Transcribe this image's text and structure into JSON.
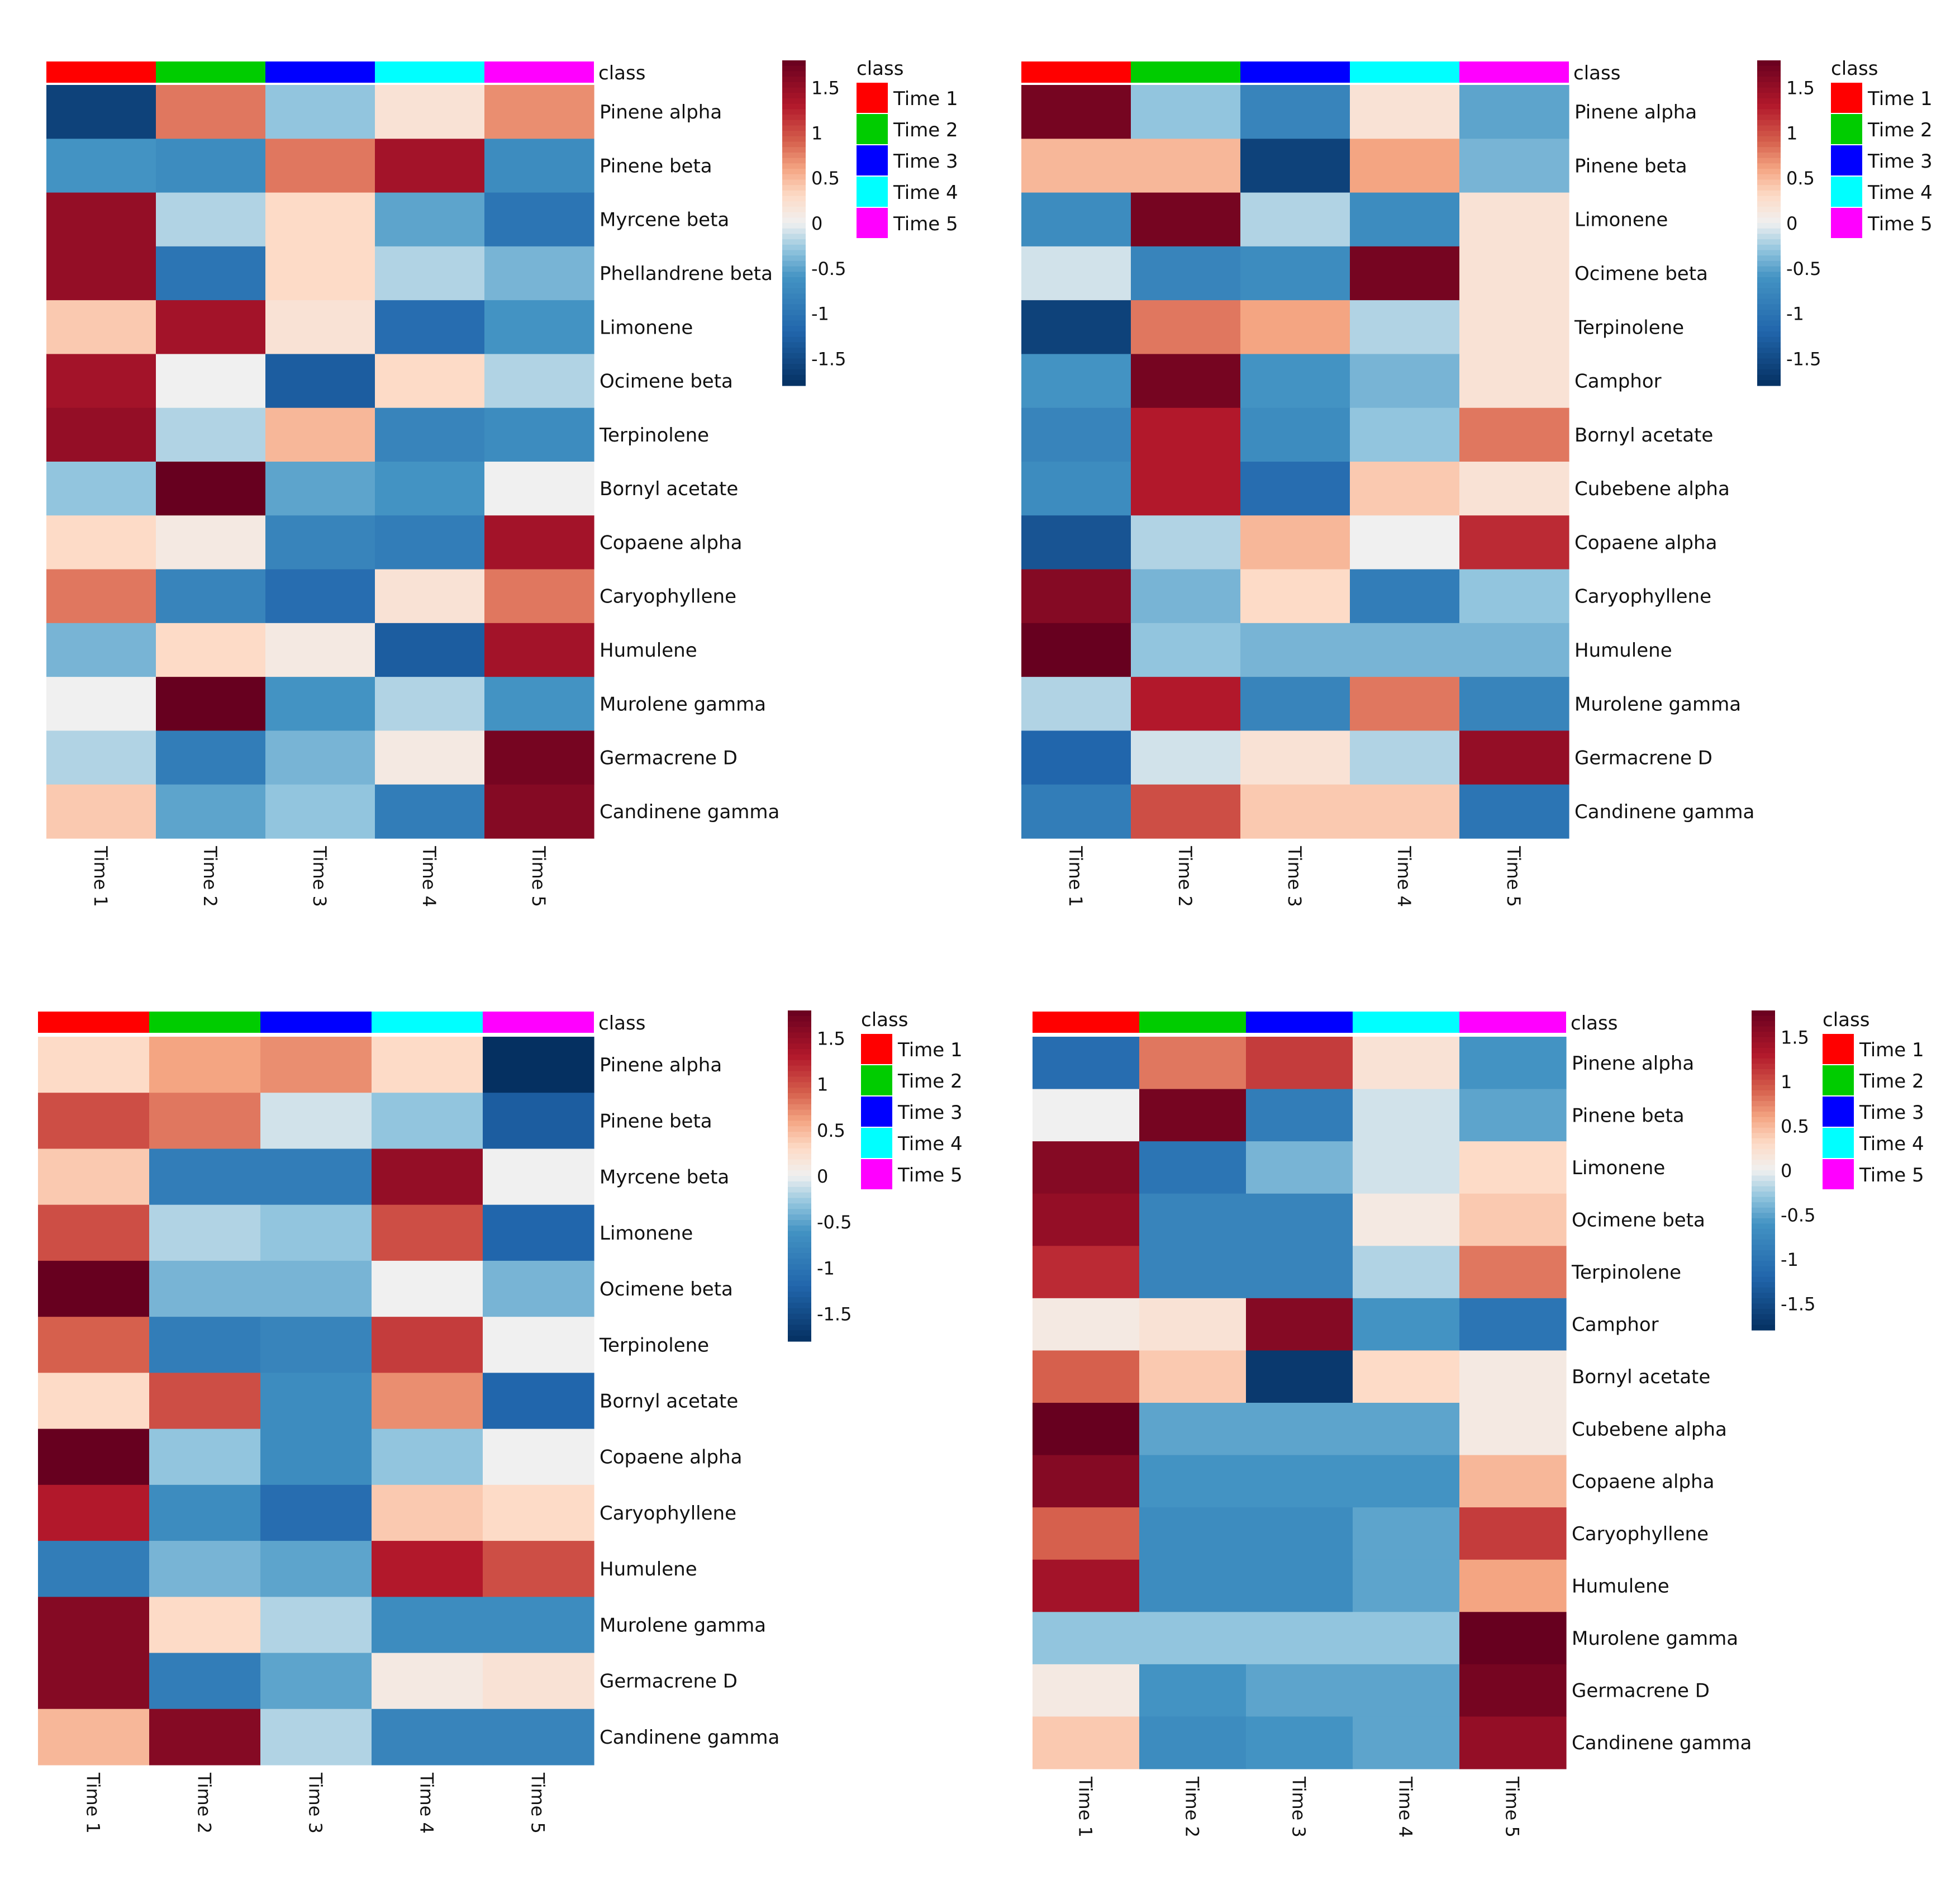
{
  "colors": {
    "class": [
      "#ff0000",
      "#00cc00",
      "#0000ff",
      "#00ffff",
      "#ff00ff"
    ],
    "scale_low": "#053061",
    "scale_mid": "#f5f5f5",
    "scale_high": "#67001f"
  },
  "chart_data": [
    {
      "type": "heatmap",
      "annotation_title": "class",
      "legend_title": "class",
      "legend_labels": [
        "Time 1",
        "Time 2",
        "Time 3",
        "Time 4",
        "Time 5"
      ],
      "columns": [
        "Time 1",
        "Time 2",
        "Time 3",
        "Time 4",
        "Time 5"
      ],
      "scale_ticks": [
        "1.5",
        "1",
        "0.5",
        "0",
        "-0.5",
        "-1",
        "-1.5"
      ],
      "scale_range": [
        -1.8,
        1.8
      ],
      "rows": [
        "Pinene alpha",
        "Pinene beta",
        "Myrcene beta",
        "Phellandrene beta",
        "Limonene",
        "Ocimene beta",
        "Terpinolene",
        "Bornyl acetate",
        "Copaene alpha",
        "Caryophyllene",
        "Humulene",
        "Murolene gamma",
        "Germacrene D",
        "Candinene gamma"
      ],
      "values": [
        [
          -1.6,
          0.8,
          -0.3,
          0.2,
          0.7
        ],
        [
          -0.6,
          -0.7,
          0.8,
          1.4,
          -0.7
        ],
        [
          1.5,
          -0.2,
          0.3,
          -0.5,
          -1.0
        ],
        [
          1.5,
          -1.0,
          0.3,
          -0.2,
          -0.4
        ],
        [
          0.4,
          1.4,
          0.2,
          -1.1,
          -0.6
        ],
        [
          1.4,
          0.0,
          -1.3,
          0.3,
          -0.2
        ],
        [
          1.5,
          -0.2,
          0.5,
          -0.8,
          -0.7
        ],
        [
          -0.3,
          1.8,
          -0.5,
          -0.6,
          0.0
        ],
        [
          0.3,
          0.1,
          -0.8,
          -0.9,
          1.4
        ],
        [
          0.8,
          -0.8,
          -1.1,
          0.2,
          0.8
        ],
        [
          -0.4,
          0.3,
          0.1,
          -1.3,
          1.4
        ],
        [
          0.0,
          1.8,
          -0.6,
          -0.2,
          -0.6
        ],
        [
          -0.2,
          -0.9,
          -0.4,
          0.1,
          1.7
        ],
        [
          0.4,
          -0.5,
          -0.3,
          -0.9,
          1.6
        ]
      ]
    },
    {
      "type": "heatmap",
      "annotation_title": "class",
      "legend_title": "class",
      "legend_labels": [
        "Time 1",
        "Time 2",
        "Time 3",
        "Time 4",
        "Time 5"
      ],
      "columns": [
        "Time 1",
        "Time 2",
        "Time 3",
        "Time 4",
        "Time 5"
      ],
      "scale_ticks": [
        "1.5",
        "1",
        "0.5",
        "0",
        "-0.5",
        "-1",
        "-1.5"
      ],
      "scale_range": [
        -1.8,
        1.8
      ],
      "rows": [
        "Pinene alpha",
        "Pinene beta",
        "Limonene",
        "Ocimene beta",
        "Terpinolene",
        "Camphor",
        "Bornyl acetate",
        "Cubebene alpha",
        "Copaene alpha",
        "Caryophyllene",
        "Humulene",
        "Murolene gamma",
        "Germacrene D",
        "Candinene gamma"
      ],
      "values": [
        [
          1.7,
          -0.3,
          -0.8,
          0.2,
          -0.5
        ],
        [
          0.5,
          0.5,
          -1.6,
          0.6,
          -0.4
        ],
        [
          -0.7,
          1.7,
          -0.2,
          -0.7,
          0.2
        ],
        [
          -0.1,
          -0.8,
          -0.7,
          1.7,
          0.2
        ],
        [
          -1.6,
          0.8,
          0.6,
          -0.2,
          0.2
        ],
        [
          -0.6,
          1.7,
          -0.6,
          -0.4,
          0.2
        ],
        [
          -0.8,
          1.3,
          -0.7,
          -0.3,
          0.8
        ],
        [
          -0.7,
          1.3,
          -1.1,
          0.4,
          0.2
        ],
        [
          -1.4,
          -0.2,
          0.5,
          0.0,
          1.2
        ],
        [
          1.6,
          -0.4,
          0.3,
          -0.9,
          -0.3
        ],
        [
          1.8,
          -0.3,
          -0.4,
          -0.4,
          -0.4
        ],
        [
          -0.2,
          1.3,
          -0.8,
          0.8,
          -0.8
        ],
        [
          -1.2,
          -0.1,
          0.2,
          -0.2,
          1.5
        ],
        [
          -0.9,
          1.0,
          0.4,
          0.4,
          -1.0
        ]
      ]
    },
    {
      "type": "heatmap",
      "annotation_title": "class",
      "legend_title": "class",
      "legend_labels": [
        "Time 1",
        "Time 2",
        "Time 3",
        "Time 4",
        "Time 5"
      ],
      "columns": [
        "Time 1",
        "Time 2",
        "Time 3",
        "Time 4",
        "Time 5"
      ],
      "scale_ticks": [
        "1.5",
        "1",
        "0.5",
        "0",
        "-0.5",
        "-1",
        "-1.5"
      ],
      "scale_range": [
        -1.8,
        1.8
      ],
      "rows": [
        "Pinene alpha",
        "Pinene beta",
        "Myrcene beta",
        "Limonene",
        "Ocimene beta",
        "Terpinolene",
        "Bornyl acetate",
        "Copaene alpha",
        "Caryophyllene",
        "Humulene",
        "Murolene gamma",
        "Germacrene D",
        "Candinene gamma"
      ],
      "values": [
        [
          0.3,
          0.6,
          0.7,
          0.3,
          -1.8
        ],
        [
          1.0,
          0.8,
          -0.1,
          -0.3,
          -1.3
        ],
        [
          0.4,
          -0.9,
          -0.9,
          1.5,
          0.0
        ],
        [
          1.0,
          -0.2,
          -0.3,
          1.0,
          -1.2
        ],
        [
          1.8,
          -0.4,
          -0.4,
          0.0,
          -0.4
        ],
        [
          0.9,
          -0.9,
          -0.8,
          1.1,
          0.0
        ],
        [
          0.3,
          1.0,
          -0.7,
          0.7,
          -1.2
        ],
        [
          1.8,
          -0.3,
          -0.7,
          -0.3,
          0.0
        ],
        [
          1.3,
          -0.7,
          -1.1,
          0.4,
          0.3
        ],
        [
          -0.9,
          -0.4,
          -0.5,
          1.3,
          1.0
        ],
        [
          1.6,
          0.3,
          -0.2,
          -0.7,
          -0.7
        ],
        [
          1.6,
          -0.9,
          -0.5,
          0.1,
          0.2
        ],
        [
          0.5,
          1.6,
          -0.2,
          -0.8,
          -0.8
        ]
      ]
    },
    {
      "type": "heatmap",
      "annotation_title": "class",
      "legend_title": "class",
      "legend_labels": [
        "Time 1",
        "Time 2",
        "Time 3",
        "Time 4",
        "Time 5"
      ],
      "columns": [
        "Time 1",
        "Time 2",
        "Time 3",
        "Time 4",
        "Time 5"
      ],
      "scale_ticks": [
        "1.5",
        "1",
        "0.5",
        "0",
        "-0.5",
        "-1",
        "-1.5"
      ],
      "scale_range": [
        -1.8,
        1.8
      ],
      "rows": [
        "Pinene alpha",
        "Pinene beta",
        "Limonene",
        "Ocimene beta",
        "Terpinolene",
        "Camphor",
        "Bornyl acetate",
        "Cubebene alpha",
        "Copaene alpha",
        "Caryophyllene",
        "Humulene",
        "Murolene gamma",
        "Germacrene D",
        "Candinene gamma"
      ],
      "values": [
        [
          -1.1,
          0.8,
          1.1,
          0.2,
          -0.6
        ],
        [
          0.0,
          1.7,
          -0.9,
          -0.1,
          -0.5
        ],
        [
          1.6,
          -1.0,
          -0.4,
          -0.1,
          0.3
        ],
        [
          1.5,
          -0.8,
          -0.8,
          0.1,
          0.4
        ],
        [
          1.2,
          -0.8,
          -0.8,
          -0.2,
          0.8
        ],
        [
          0.1,
          0.2,
          1.6,
          -0.6,
          -1.0
        ],
        [
          0.9,
          0.4,
          -1.7,
          0.3,
          0.1
        ],
        [
          1.8,
          -0.5,
          -0.5,
          -0.5,
          0.1
        ],
        [
          1.6,
          -0.6,
          -0.6,
          -0.6,
          0.5
        ],
        [
          0.9,
          -0.7,
          -0.7,
          -0.5,
          1.1
        ],
        [
          1.4,
          -0.7,
          -0.7,
          -0.5,
          0.6
        ],
        [
          -0.3,
          -0.3,
          -0.3,
          -0.3,
          1.8
        ],
        [
          0.1,
          -0.6,
          -0.5,
          -0.5,
          1.7
        ],
        [
          0.4,
          -0.7,
          -0.6,
          -0.5,
          1.5
        ]
      ]
    }
  ]
}
